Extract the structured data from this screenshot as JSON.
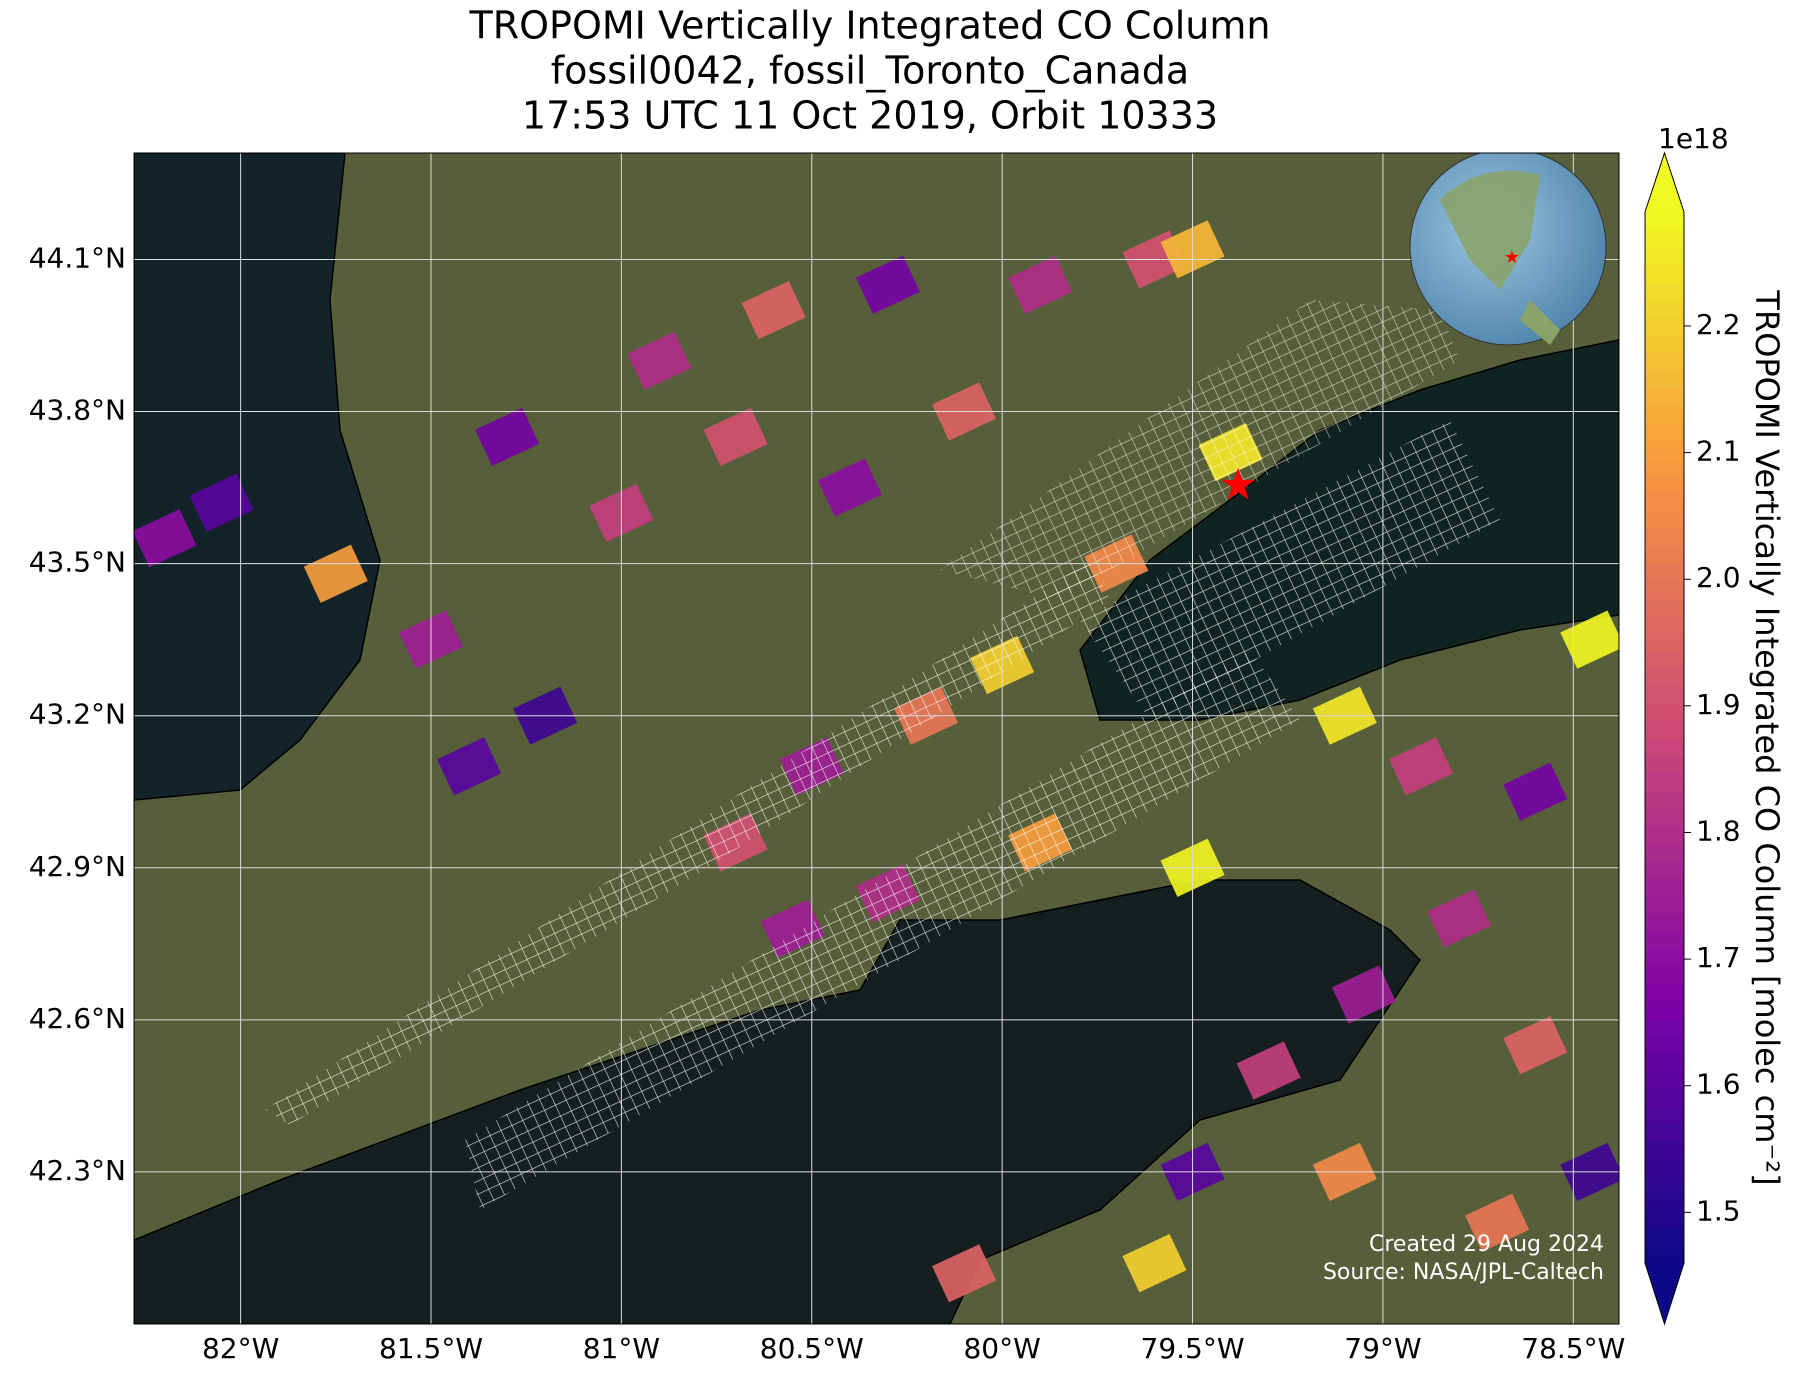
{
  "title": [
    "TROPOMI Vertically Integrated CO Column",
    "fossil0042, fossil_Toronto_Canada",
    "17:53 UTC 11 Oct 2019, Orbit 10333"
  ],
  "map": {
    "lonlim": [
      -82.28,
      -78.38
    ],
    "latlim": [
      42.0,
      44.31
    ],
    "xticks": [
      {
        "value": -82,
        "label": "82°W"
      },
      {
        "value": -81.5,
        "label": "81.5°W"
      },
      {
        "value": -81,
        "label": "81°W"
      },
      {
        "value": -80.5,
        "label": "80.5°W"
      },
      {
        "value": -80,
        "label": "80°W"
      },
      {
        "value": -79.5,
        "label": "79.5°W"
      },
      {
        "value": -79,
        "label": "79°W"
      },
      {
        "value": -78.5,
        "label": "78.5°W"
      }
    ],
    "yticks": [
      {
        "value": 44.1,
        "label": "44.1°N"
      },
      {
        "value": 43.8,
        "label": "43.8°N"
      },
      {
        "value": 43.5,
        "label": "43.5°N"
      },
      {
        "value": 43.2,
        "label": "43.2°N"
      },
      {
        "value": 42.9,
        "label": "42.9°N"
      },
      {
        "value": 42.6,
        "label": "42.6°N"
      },
      {
        "value": 42.3,
        "label": "42.3°N"
      }
    ],
    "cells": [
      {
        "lon": -82.2,
        "lat": 43.55,
        "value": 1.7
      },
      {
        "lon": -82.05,
        "lat": 43.62,
        "value": 1.6
      },
      {
        "lon": -81.75,
        "lat": 43.48,
        "value": 2.1
      },
      {
        "lon": -81.5,
        "lat": 43.35,
        "value": 1.75
      },
      {
        "lon": -81.4,
        "lat": 43.1,
        "value": 1.6
      },
      {
        "lon": -81.2,
        "lat": 43.2,
        "value": 1.55
      },
      {
        "lon": -81.3,
        "lat": 43.75,
        "value": 1.65
      },
      {
        "lon": -81.0,
        "lat": 43.6,
        "value": 1.85
      },
      {
        "lon": -80.9,
        "lat": 43.9,
        "value": 1.8
      },
      {
        "lon": -80.7,
        "lat": 43.75,
        "value": 1.9
      },
      {
        "lon": -80.6,
        "lat": 44.0,
        "value": 1.95
      },
      {
        "lon": -80.3,
        "lat": 44.05,
        "value": 1.65
      },
      {
        "lon": -80.4,
        "lat": 43.65,
        "value": 1.7
      },
      {
        "lon": -80.1,
        "lat": 43.8,
        "value": 1.95
      },
      {
        "lon": -79.9,
        "lat": 44.05,
        "value": 1.8
      },
      {
        "lon": -79.6,
        "lat": 44.1,
        "value": 1.9
      },
      {
        "lon": -79.5,
        "lat": 44.12,
        "value": 2.15
      },
      {
        "lon": -79.4,
        "lat": 43.72,
        "value": 2.25
      },
      {
        "lon": -79.7,
        "lat": 43.5,
        "value": 2.05
      },
      {
        "lon": -80.0,
        "lat": 43.3,
        "value": 2.2
      },
      {
        "lon": -80.2,
        "lat": 43.2,
        "value": 2.0
      },
      {
        "lon": -80.5,
        "lat": 43.1,
        "value": 1.75
      },
      {
        "lon": -80.7,
        "lat": 42.95,
        "value": 1.9
      },
      {
        "lon": -80.55,
        "lat": 42.78,
        "value": 1.75
      },
      {
        "lon": -80.3,
        "lat": 42.85,
        "value": 1.8
      },
      {
        "lon": -79.9,
        "lat": 42.95,
        "value": 2.1
      },
      {
        "lon": -79.5,
        "lat": 42.9,
        "value": 2.28
      },
      {
        "lon": -79.1,
        "lat": 43.2,
        "value": 2.25
      },
      {
        "lon": -78.9,
        "lat": 43.1,
        "value": 1.85
      },
      {
        "lon": -78.6,
        "lat": 43.05,
        "value": 1.65
      },
      {
        "lon": -78.45,
        "lat": 43.35,
        "value": 2.28
      },
      {
        "lon": -78.8,
        "lat": 42.8,
        "value": 1.8
      },
      {
        "lon": -79.05,
        "lat": 42.65,
        "value": 1.75
      },
      {
        "lon": -78.6,
        "lat": 42.55,
        "value": 1.95
      },
      {
        "lon": -79.3,
        "lat": 42.5,
        "value": 1.85
      },
      {
        "lon": -79.1,
        "lat": 42.3,
        "value": 2.05
      },
      {
        "lon": -79.5,
        "lat": 42.3,
        "value": 1.6
      },
      {
        "lon": -78.7,
        "lat": 42.2,
        "value": 2.0
      },
      {
        "lon": -79.6,
        "lat": 42.12,
        "value": 2.2
      },
      {
        "lon": -78.45,
        "lat": 42.3,
        "value": 1.55
      },
      {
        "lon": -80.1,
        "lat": 42.1,
        "value": 1.95
      }
    ],
    "site": {
      "lon": -79.38,
      "lat": 43.65,
      "color": "#ff0000"
    }
  },
  "colorbar": {
    "label": "TROPOMI Vertically Integrated CO Column [molec cm⁻²]",
    "exponent": "1e18",
    "clim": [
      1.46,
      2.29
    ],
    "ticks": [
      1.5,
      1.6,
      1.7,
      1.8,
      1.9,
      {
        "value": 2,
        "label": "2.0"
      },
      2.1,
      2.2
    ]
  },
  "footer": [
    "Created 29 Aug 2024",
    "Source: NASA/JPL-Caltech"
  ]
}
